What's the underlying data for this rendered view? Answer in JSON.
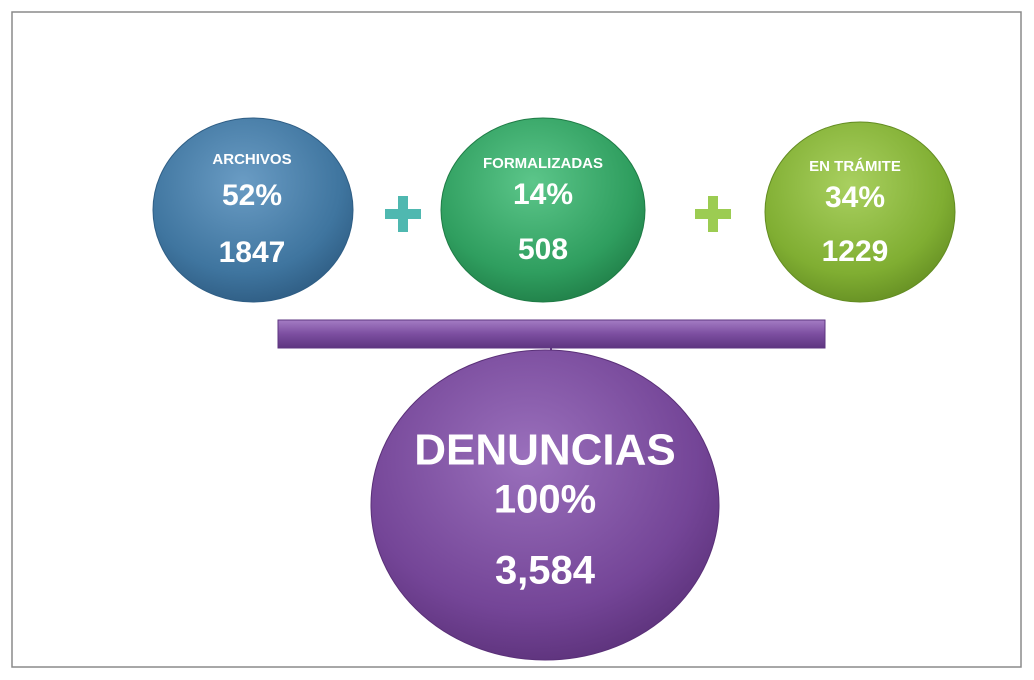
{
  "nodes": [
    {
      "label": "ARCHIVOS",
      "percent": "52%",
      "count": "1847"
    },
    {
      "label": "FORMALIZADAS",
      "percent": "14%",
      "count": "508"
    },
    {
      "label": "EN TRÁMITE",
      "percent": "34%",
      "count": "1229"
    }
  ],
  "total": {
    "label": "DENUNCIAS",
    "percent": "100%",
    "count": "3,584"
  }
}
